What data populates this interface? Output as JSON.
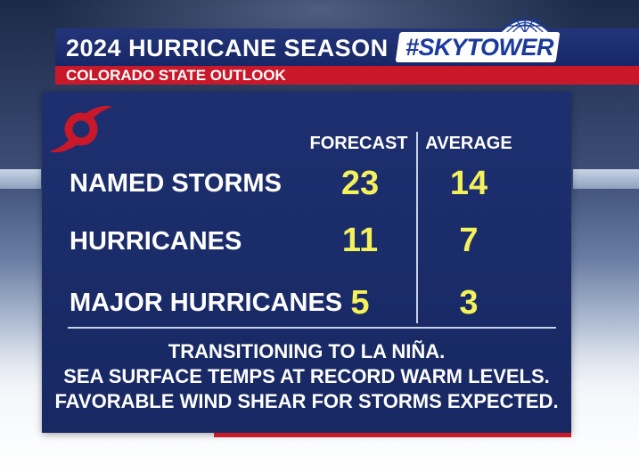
{
  "header": {
    "title": "2024 HURRICANE SEASON",
    "brand": "#SKYTOWER",
    "subtitle": "COLORADO STATE OUTLOOK"
  },
  "table": {
    "columns": [
      "FORECAST",
      "AVERAGE"
    ],
    "rows": [
      {
        "label": "NAMED STORMS",
        "forecast": "23",
        "average": "14"
      },
      {
        "label": "HURRICANES",
        "forecast": "11",
        "average": "7"
      },
      {
        "label": "MAJOR HURRICANES",
        "forecast": "5",
        "average": "3"
      }
    ]
  },
  "notes": [
    "TRANSITIONING TO LA NIÑA.",
    "SEA SURFACE TEMPS AT RECORD WARM LEVELS.",
    "FAVORABLE WIND SHEAR FOR STORMS EXPECTED."
  ],
  "colors": {
    "panel": "#1d2f6f",
    "accent_red": "#c8182a",
    "value_yellow": "#f4f15a",
    "brand_blue": "#1a3a9c"
  },
  "icons": {
    "logo": "hurricane-symbol-icon",
    "brand": "dome-icon"
  }
}
